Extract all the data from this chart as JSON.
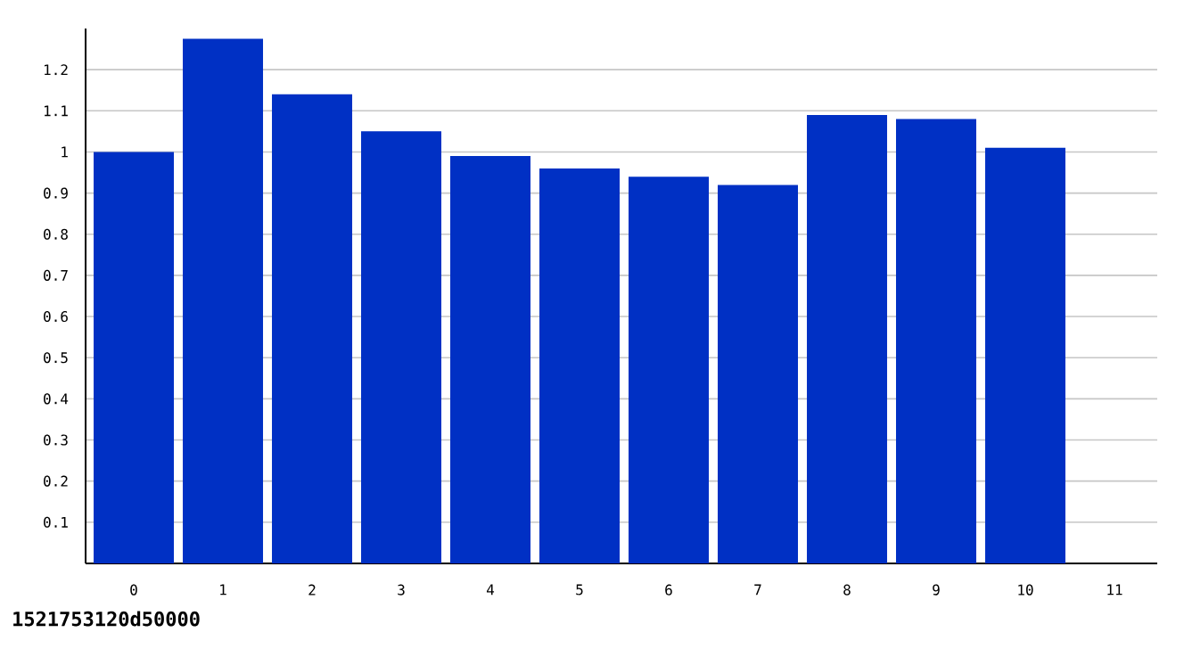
{
  "chart_data": {
    "type": "bar",
    "categories": [
      "0",
      "1",
      "2",
      "3",
      "4",
      "5",
      "6",
      "7",
      "8",
      "9",
      "10",
      "11"
    ],
    "values": [
      1.0,
      1.275,
      1.14,
      1.05,
      0.99,
      0.96,
      0.94,
      0.92,
      1.09,
      1.08,
      1.01,
      null
    ],
    "color": "#0030c4",
    "ylim": [
      0,
      1.3
    ],
    "yticks": [
      0.1,
      0.2,
      0.3,
      0.4,
      0.5,
      0.6,
      0.7,
      0.8,
      0.9,
      1,
      1.1,
      1.2
    ],
    "grid": "y",
    "annotations": [
      "1521753120d50000"
    ]
  }
}
